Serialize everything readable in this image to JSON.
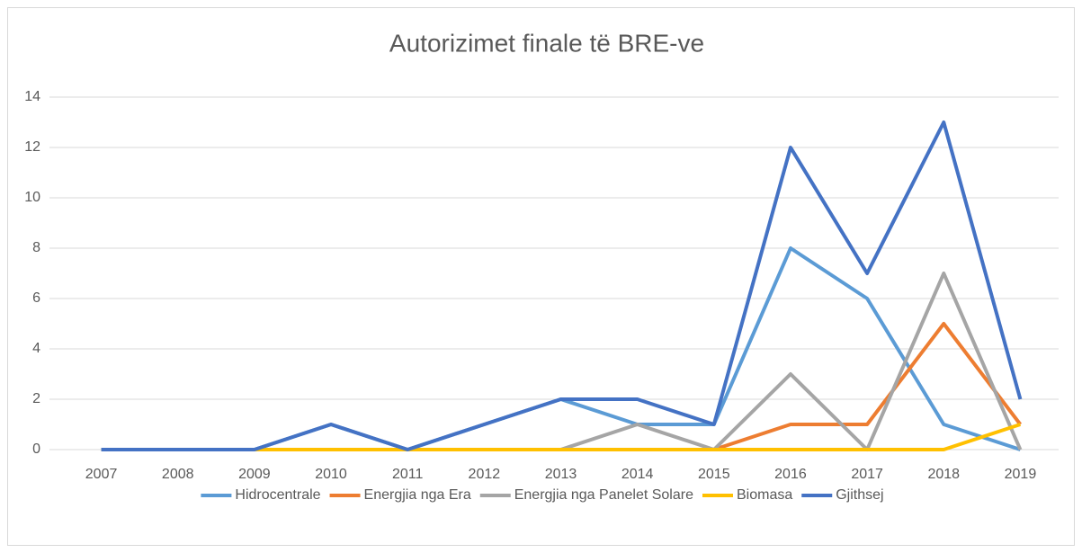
{
  "chart_data": {
    "type": "line",
    "title": "Autorizimet finale të BRE-ve",
    "categories": [
      "2007",
      "2008",
      "2009",
      "2010",
      "2011",
      "2012",
      "2013",
      "2014",
      "2015",
      "2016",
      "2017",
      "2018",
      "2019"
    ],
    "series": [
      {
        "name": "Hidrocentrale",
        "color": "#5b9bd5",
        "values": [
          0,
          0,
          0,
          1,
          0,
          1,
          2,
          1,
          1,
          8,
          6,
          1,
          0
        ]
      },
      {
        "name": "Energjia nga Era",
        "color": "#ed7d31",
        "values": [
          0,
          0,
          0,
          0,
          0,
          0,
          0,
          0,
          0,
          1,
          1,
          5,
          1
        ]
      },
      {
        "name": "Energjia nga Panelet Solare",
        "color": "#a5a5a5",
        "values": [
          0,
          0,
          0,
          0,
          0,
          0,
          0,
          1,
          0,
          3,
          0,
          7,
          0
        ]
      },
      {
        "name": "Biomasa",
        "color": "#ffc000",
        "values": [
          0,
          0,
          0,
          0,
          0,
          0,
          0,
          0,
          0,
          0,
          0,
          0,
          1
        ]
      },
      {
        "name": "Gjithsej",
        "color": "#4472c4",
        "values": [
          0,
          0,
          0,
          1,
          0,
          1,
          2,
          2,
          1,
          12,
          7,
          13,
          2
        ]
      }
    ],
    "ylim": [
      0,
      14
    ],
    "yticks": [
      0,
      2,
      4,
      6,
      8,
      10,
      12,
      14
    ],
    "grid": true,
    "legend": "bottom"
  }
}
